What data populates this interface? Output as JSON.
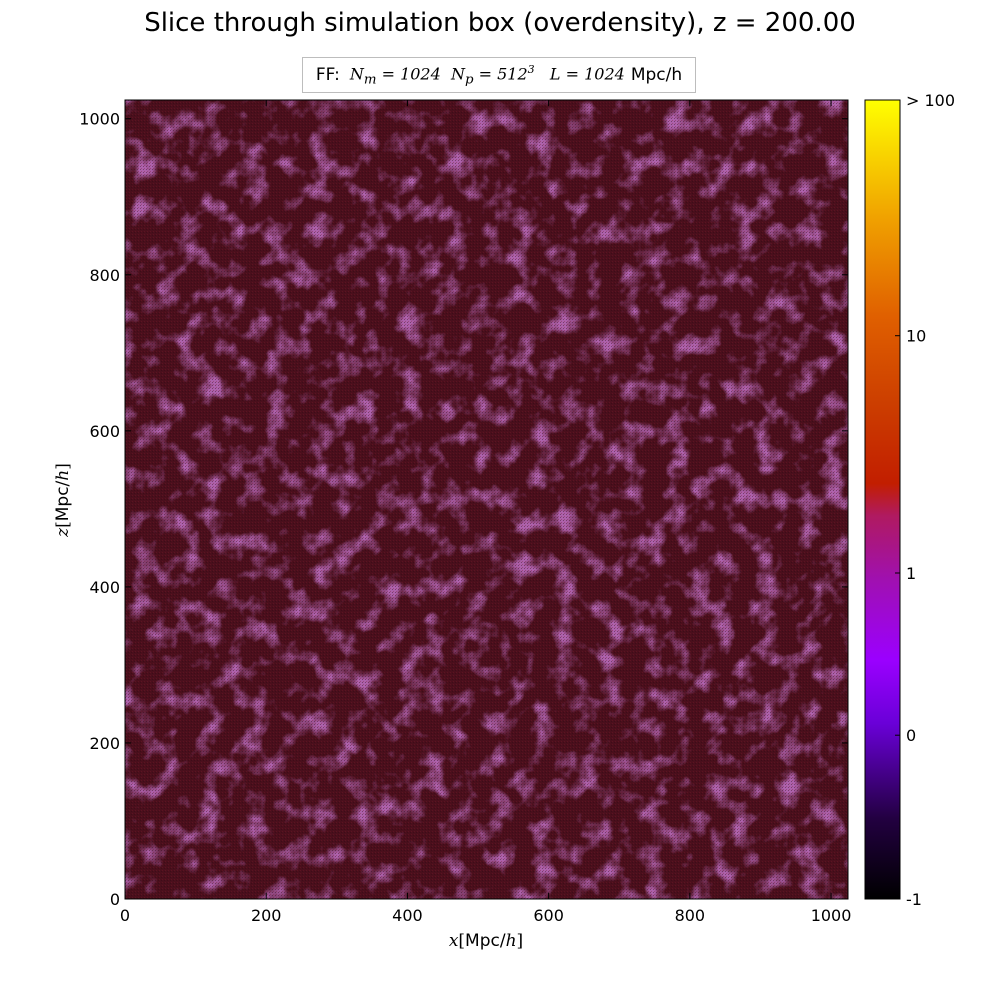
{
  "chart_data": {
    "type": "heatmap",
    "title": "Slice through simulation box (overdensity), z = 200.00",
    "legend": {
      "prefix": "FF:",
      "expression": "N_m = 1024  N_p = 512^3   L = 1024",
      "expression_parts": {
        "nm": "N",
        "nm_sub": "m",
        "nm_eq": " = 1024",
        "np": "N",
        "np_sub": "p",
        "np_eq": " = 512",
        "np_sup": "3",
        "l": "L",
        "l_eq": " = 1024"
      },
      "unit": "Mpc/h",
      "placement": "top-center"
    },
    "xlabel": "x[Mpc/h]",
    "ylabel": "z[Mpc/h]",
    "xlabel_parts": {
      "var": "x",
      "open": "[",
      "unit_text": "Mpc/",
      "unit_var": "h",
      "close": "]"
    },
    "ylabel_parts": {
      "var": "z",
      "open": "[",
      "unit_text": "Mpc/",
      "unit_var": "h",
      "close": "]"
    },
    "xlim": [
      0,
      1024
    ],
    "ylim": [
      0,
      1024
    ],
    "xticks": [
      0,
      200,
      400,
      600,
      800,
      1000
    ],
    "yticks": [
      0,
      200,
      400,
      600,
      800,
      1000
    ],
    "grid": false,
    "field_description": "near-uniform overdensity field, values close to 1 everywhere",
    "field_base_color": "#4a0f1c",
    "field_mottle_color": "#6a1f68",
    "colorbar": {
      "placement": "right",
      "scale": "log",
      "tick_labels": [
        "-1",
        "0",
        "1",
        "10",
        "> 100"
      ],
      "tick_fractions": [
        0.0,
        0.205,
        0.408,
        0.705,
        1.0
      ],
      "colormap_stops": [
        {
          "pos": 0.0,
          "color": "#000000"
        },
        {
          "pos": 0.1,
          "color": "#220040"
        },
        {
          "pos": 0.22,
          "color": "#6a00d8"
        },
        {
          "pos": 0.3,
          "color": "#9b00ff"
        },
        {
          "pos": 0.4,
          "color": "#a010b0"
        },
        {
          "pos": 0.48,
          "color": "#b01a60"
        },
        {
          "pos": 0.52,
          "color": "#c21e00"
        },
        {
          "pos": 0.62,
          "color": "#cc3e00"
        },
        {
          "pos": 0.73,
          "color": "#e06000"
        },
        {
          "pos": 0.85,
          "color": "#f0a000"
        },
        {
          "pos": 1.0,
          "color": "#ffff00"
        }
      ]
    }
  }
}
